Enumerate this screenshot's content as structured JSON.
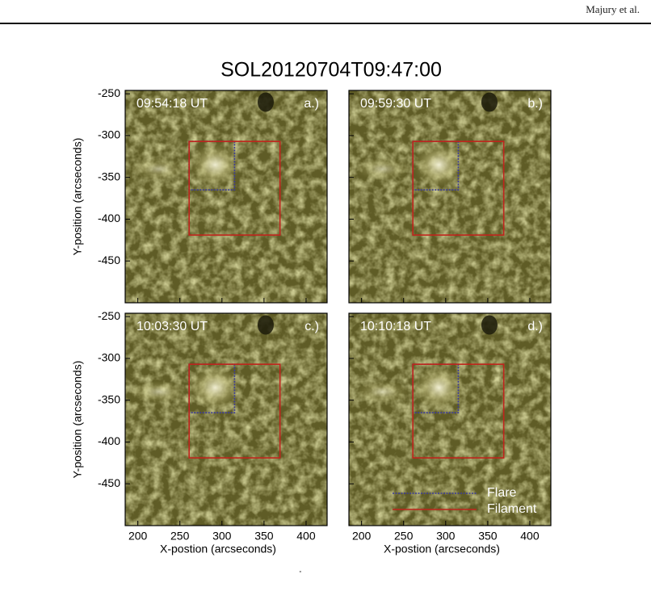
{
  "header": {
    "author": "Majury et al."
  },
  "figure": {
    "title": "SOL20120704T09:47:00",
    "xlabel": "X-postion (arcseconds)",
    "ylabel": "Y-position (arcseconds)",
    "xlim": [
      185,
      425
    ],
    "ylim": [
      -500,
      -246
    ],
    "xticks": [
      200,
      250,
      300,
      350,
      400
    ],
    "yticks": [
      -250,
      -300,
      -350,
      -400,
      -450
    ],
    "panels": [
      {
        "time": "09:54:18 UT",
        "tag": "a.)"
      },
      {
        "time": "09:59:30 UT",
        "tag": "b.)"
      },
      {
        "time": "10:03:30 UT",
        "tag": "c.)"
      },
      {
        "time": "10:10:18 UT",
        "tag": "d.)"
      }
    ],
    "regions": [
      {
        "name": "Flare",
        "color": "#3b3b9a",
        "x": [
          261,
          315
        ],
        "y": [
          -307,
          -365
        ]
      },
      {
        "name": "Filament",
        "color": "#c0241c",
        "x": [
          261,
          369
        ],
        "y": [
          -307,
          -419
        ]
      }
    ]
  },
  "footer": "˚"
}
